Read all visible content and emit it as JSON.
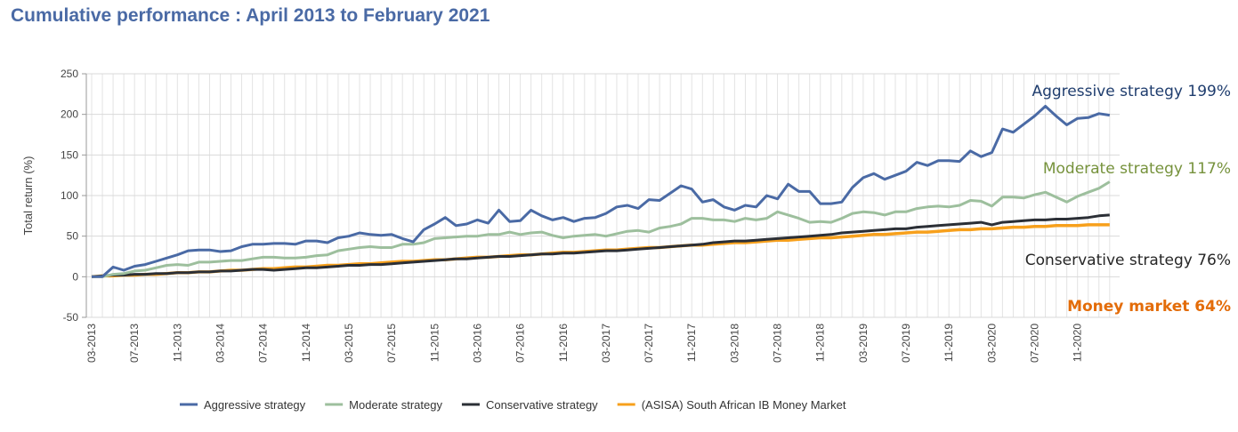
{
  "chart_data": {
    "type": "line",
    "title": "Cumulative performance : April 2013 to February 2021",
    "xlabel": "",
    "ylabel": "Total return (%)",
    "ylim": [
      -50,
      250
    ],
    "yticks": [
      250,
      200,
      150,
      100,
      50,
      0,
      -50
    ],
    "grid": true,
    "legend_position": "bottom",
    "x_start": "03-2013",
    "x_end": "02-2021",
    "x_frequency": "monthly",
    "xtick_labels": [
      "03-2013",
      "07-2013",
      "11-2013",
      "03-2014",
      "07-2014",
      "11-2014",
      "03-2015",
      "07-2015",
      "11-2015",
      "03-2016",
      "07-2016",
      "11-2016",
      "03-2017",
      "07-2017",
      "11-2017",
      "03-2018",
      "07-2018",
      "11-2018",
      "03-2019",
      "07-2019",
      "11-2019",
      "03-2020",
      "07-2020",
      "11-2020"
    ],
    "series": [
      {
        "name": "Aggressive strategy",
        "color": "#4a6aa5",
        "end_label": "Aggressive strategy 199%",
        "label_color": "#1f3d6e",
        "values": [
          0,
          0,
          12,
          8,
          13,
          15,
          19,
          23,
          27,
          32,
          33,
          33,
          31,
          32,
          37,
          40,
          40,
          41,
          41,
          40,
          44,
          44,
          42,
          48,
          50,
          54,
          52,
          51,
          52,
          47,
          43,
          58,
          65,
          73,
          63,
          65,
          70,
          66,
          82,
          68,
          69,
          82,
          75,
          70,
          73,
          68,
          72,
          73,
          78,
          86,
          88,
          84,
          95,
          94,
          103,
          112,
          108,
          92,
          95,
          86,
          82,
          88,
          86,
          100,
          96,
          114,
          105,
          105,
          90,
          90,
          92,
          110,
          122,
          127,
          120,
          125,
          130,
          141,
          137,
          143,
          143,
          142,
          155,
          148,
          153,
          182,
          178,
          188,
          198,
          210,
          198,
          187,
          195,
          196,
          201,
          199
        ]
      },
      {
        "name": "Moderate strategy",
        "color": "#9dbf9d",
        "end_label": "Moderate strategy 117%",
        "label_color": "#76923c",
        "values": [
          0,
          0,
          3,
          4,
          7,
          8,
          11,
          14,
          15,
          14,
          18,
          18,
          19,
          20,
          20,
          22,
          24,
          24,
          23,
          23,
          24,
          26,
          27,
          32,
          34,
          36,
          37,
          36,
          36,
          40,
          40,
          42,
          47,
          48,
          49,
          50,
          50,
          52,
          52,
          55,
          52,
          54,
          55,
          51,
          48,
          50,
          51,
          52,
          50,
          53,
          56,
          57,
          55,
          60,
          62,
          65,
          72,
          72,
          70,
          70,
          68,
          72,
          70,
          72,
          80,
          76,
          72,
          67,
          68,
          67,
          72,
          78,
          80,
          79,
          76,
          80,
          80,
          84,
          86,
          87,
          86,
          88,
          94,
          93,
          87,
          98,
          98,
          97,
          101,
          104,
          98,
          92,
          99,
          104,
          109,
          117
        ]
      },
      {
        "name": "Conservative strategy",
        "color": "#2b2f36",
        "end_label": "Conservative strategy 76%",
        "label_color": "#262626",
        "values": [
          0,
          1,
          2,
          2,
          3,
          3,
          4,
          4,
          5,
          5,
          6,
          6,
          7,
          7,
          8,
          9,
          9,
          8,
          9,
          10,
          11,
          11,
          12,
          13,
          14,
          14,
          15,
          15,
          16,
          17,
          18,
          19,
          20,
          21,
          22,
          22,
          23,
          24,
          25,
          25,
          26,
          27,
          28,
          28,
          29,
          29,
          30,
          31,
          32,
          32,
          33,
          34,
          35,
          36,
          37,
          38,
          39,
          40,
          42,
          43,
          44,
          44,
          45,
          46,
          47,
          48,
          49,
          50,
          51,
          52,
          54,
          55,
          56,
          57,
          58,
          59,
          59,
          61,
          62,
          63,
          64,
          65,
          66,
          67,
          64,
          67,
          68,
          69,
          70,
          70,
          71,
          71,
          72,
          73,
          75,
          76
        ]
      },
      {
        "name": "(ASISA) South African IB Money Market",
        "color": "#f7a01c",
        "end_label": "Money market 64%",
        "label_color": "#e36c09",
        "values": [
          0,
          1,
          1,
          2,
          2,
          3,
          3,
          4,
          5,
          5,
          6,
          6,
          7,
          8,
          8,
          9,
          10,
          10,
          11,
          12,
          12,
          13,
          14,
          14,
          15,
          16,
          16,
          17,
          18,
          19,
          19,
          20,
          21,
          21,
          22,
          23,
          24,
          24,
          25,
          26,
          27,
          27,
          28,
          29,
          30,
          30,
          31,
          32,
          33,
          33,
          34,
          35,
          36,
          36,
          37,
          38,
          39,
          39,
          40,
          41,
          42,
          42,
          43,
          44,
          45,
          45,
          46,
          47,
          48,
          48,
          49,
          50,
          51,
          52,
          52,
          53,
          54,
          55,
          55,
          56,
          57,
          58,
          58,
          59,
          59,
          60,
          61,
          61,
          62,
          62,
          63,
          63,
          63,
          64,
          64,
          64
        ]
      }
    ]
  }
}
